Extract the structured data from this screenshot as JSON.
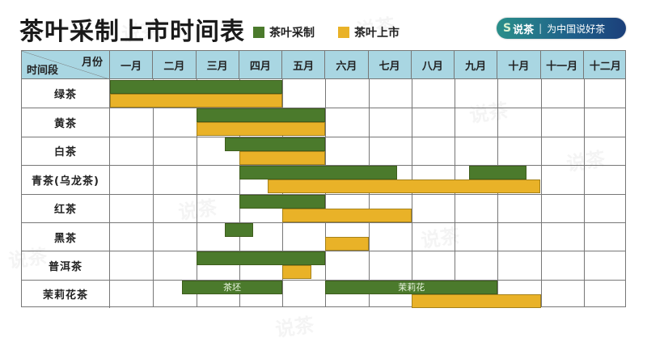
{
  "title": "茶叶采制上市时间表",
  "legend": [
    {
      "label": "茶叶采制",
      "color": "#4b7a2c"
    },
    {
      "label": "茶叶上市",
      "color": "#e9b228"
    }
  ],
  "badge": {
    "logo": "S",
    "brand": "说茶",
    "slogan": "为中国说好茶"
  },
  "corner": {
    "top": "月份",
    "bottom": "时间段"
  },
  "watermark": "说茶",
  "chart_data": {
    "type": "gantt",
    "title": "茶叶采制上市时间表",
    "xlabel": "月份",
    "ylabel": "时间段",
    "categories": [
      "一月",
      "二月",
      "三月",
      "四月",
      "五月",
      "六月",
      "七月",
      "八月",
      "九月",
      "十月",
      "十一月",
      "十二月"
    ],
    "legend": [
      "茶叶采制",
      "茶叶上市"
    ],
    "grid": true,
    "rows": [
      {
        "name": "绿茶",
        "pick": [
          [
            0,
            4
          ]
        ],
        "market": [
          [
            0,
            4
          ]
        ]
      },
      {
        "name": "黄茶",
        "pick": [
          [
            2,
            5
          ]
        ],
        "market": [
          [
            2,
            5
          ]
        ]
      },
      {
        "name": "白茶",
        "pick": [
          [
            2.67,
            5
          ]
        ],
        "market": [
          [
            3,
            5
          ]
        ]
      },
      {
        "name": "青茶(乌龙茶)",
        "pick": [
          [
            3,
            6.67
          ],
          [
            8.33,
            9.67
          ]
        ],
        "market": [
          [
            3.67,
            10
          ]
        ]
      },
      {
        "name": "红茶",
        "pick": [
          [
            3,
            5
          ]
        ],
        "market": [
          [
            4,
            7
          ]
        ]
      },
      {
        "name": "黑茶",
        "pick": [
          [
            2.67,
            3.33
          ]
        ],
        "market": [
          [
            5,
            6
          ]
        ]
      },
      {
        "name": "普洱茶",
        "pick": [
          [
            2,
            5
          ]
        ],
        "market": [
          [
            4,
            4.67
          ]
        ]
      },
      {
        "name": "茉莉花茶",
        "pick": [
          [
            1.67,
            4,
            "茶坯"
          ],
          [
            5,
            9,
            "茉莉花"
          ]
        ],
        "market": [
          [
            7,
            10
          ]
        ]
      }
    ],
    "units": "month index (0 = start of 一月, 12 = end of 十二月)"
  }
}
